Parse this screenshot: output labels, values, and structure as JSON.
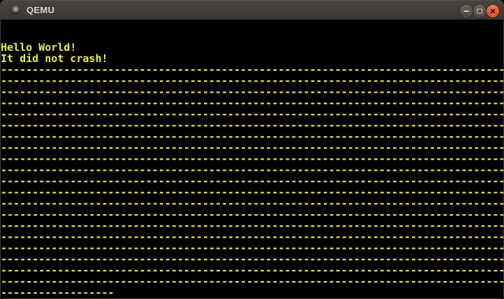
{
  "titlebar": {
    "title": "QEMU",
    "icon": "app-window-icon",
    "buttons": [
      {
        "name": "minimize",
        "icon": "minimize-icon"
      },
      {
        "name": "maximize",
        "icon": "maximize-icon"
      },
      {
        "name": "close",
        "icon": "close-icon"
      }
    ]
  },
  "colors": {
    "terminal_text": "#ebeb55",
    "terminal_bg": "#000000",
    "titlebar_top": "#48453f",
    "titlebar_bottom": "#3a3834",
    "close_button": "#e65f35",
    "gray_button": "#55524b",
    "window_border": "#3d3b37"
  },
  "screen": {
    "cols": 80,
    "rows": 25,
    "lines": [
      {
        "text": ""
      },
      {
        "text": ""
      },
      {
        "text": "Hello World!"
      },
      {
        "text": "It did not crash!"
      },
      {
        "fill": "-",
        "count": 80
      },
      {
        "fill": "-",
        "count": 80
      },
      {
        "fill": "-",
        "count": 80
      },
      {
        "fill": "-",
        "count": 80
      },
      {
        "fill": "-",
        "count": 80
      },
      {
        "fill": "-",
        "count": 80
      },
      {
        "fill": "-",
        "count": 80
      },
      {
        "fill": "-",
        "count": 80
      },
      {
        "fill": "-",
        "count": 80
      },
      {
        "fill": "-",
        "count": 80
      },
      {
        "fill": "-",
        "count": 80
      },
      {
        "fill": "-",
        "count": 80
      },
      {
        "fill": "-",
        "count": 80
      },
      {
        "fill": "-",
        "count": 80
      },
      {
        "fill": "-",
        "count": 80
      },
      {
        "fill": "-",
        "count": 80
      },
      {
        "fill": "-",
        "count": 80
      },
      {
        "fill": "-",
        "count": 80
      },
      {
        "fill": "-",
        "count": 80
      },
      {
        "fill": "-",
        "count": 80
      },
      {
        "fill": "-",
        "count": 18
      }
    ]
  }
}
